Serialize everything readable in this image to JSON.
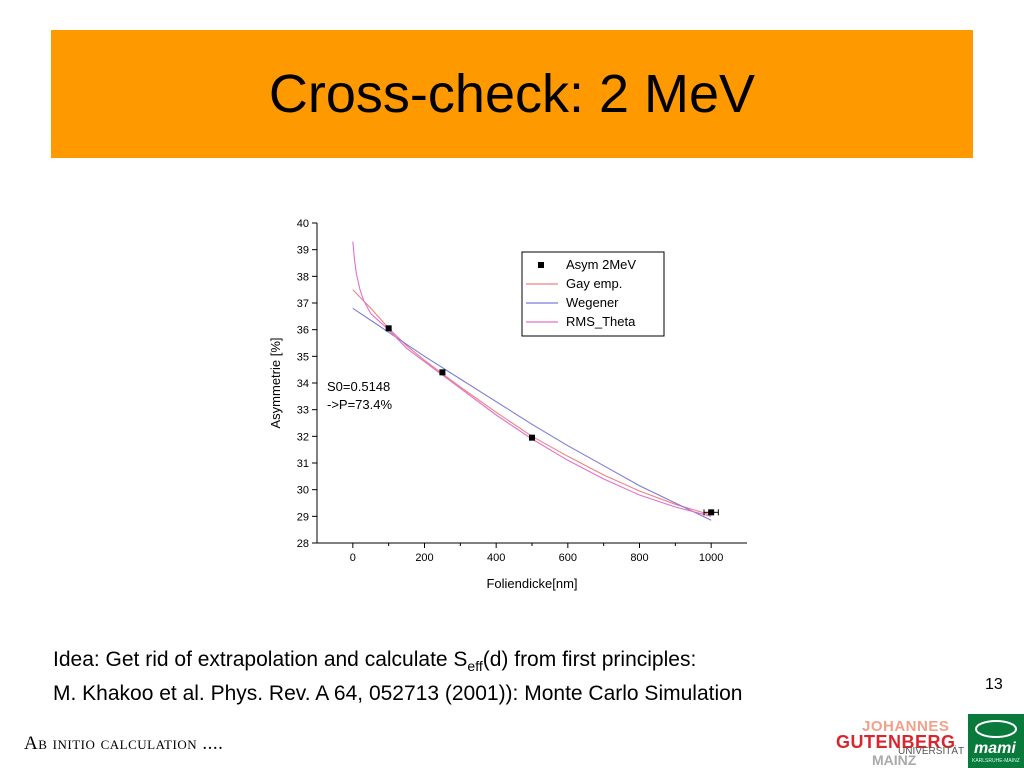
{
  "slide": {
    "title": "Cross-check: 2 MeV",
    "caption_line1_prefix": "Idea: Get rid of  extrapolation and calculate S",
    "caption_line1_sub": "eff",
    "caption_line1_suffix": "(d) from first principles:",
    "caption_line2": "M. Khakoo et al. Phys. Rev. A 64, 052713 (2001)): Monte Carlo Simulation",
    "slide_number": "13",
    "footer": "Ab initio calculation ....",
    "logo_jgu": {
      "line1": "JOHANNES",
      "line2": "GUTENBERG",
      "line3": "UNIVERSITÄT",
      "line4": "MAINZ"
    },
    "logo_mami": {
      "text": "mami",
      "sub": "KARLSRUHE-MAINZ"
    }
  },
  "chart_data": {
    "type": "scatter",
    "xlabel": "Foliendicke[nm]",
    "ylabel": "Asymmetrie [%]",
    "xlim": [
      -100,
      1100
    ],
    "ylim": [
      28,
      40
    ],
    "xticks": [
      0,
      200,
      400,
      600,
      800,
      1000
    ],
    "yticks": [
      28,
      29,
      30,
      31,
      32,
      33,
      34,
      35,
      36,
      37,
      38,
      39,
      40
    ],
    "grid": false,
    "legend_position": "top-right",
    "annotation_lines": [
      "S0=0.5148",
      "->P=73.4%"
    ],
    "series": [
      {
        "name": "Asym 2MeV",
        "kind": "points",
        "color": "#000000",
        "x": [
          100,
          250,
          500,
          1000
        ],
        "y": [
          36.05,
          34.4,
          31.95,
          29.15
        ],
        "xerr": [
          0,
          0,
          0,
          20
        ]
      },
      {
        "name": "Gay emp.",
        "kind": "line",
        "color": "#f08080",
        "x": [
          0,
          50,
          100,
          150,
          200,
          250,
          300,
          400,
          500,
          600,
          700,
          800,
          900,
          1000
        ],
        "y": [
          37.5,
          36.8,
          36.05,
          35.4,
          34.85,
          34.35,
          33.85,
          32.9,
          32.0,
          31.25,
          30.55,
          29.95,
          29.45,
          29.05
        ]
      },
      {
        "name": "Wegener",
        "kind": "line",
        "color": "#7b7bd8",
        "x": [
          0,
          100,
          200,
          300,
          400,
          500,
          600,
          700,
          800,
          900,
          1000
        ],
        "y": [
          36.8,
          35.9,
          35.0,
          34.15,
          33.3,
          32.45,
          31.65,
          30.9,
          30.15,
          29.5,
          28.85
        ]
      },
      {
        "name": "RMS_Theta",
        "kind": "line",
        "color": "#e070d0",
        "x": [
          0,
          5,
          10,
          20,
          30,
          50,
          75,
          100,
          150,
          200,
          250,
          300,
          400,
          500,
          600,
          700,
          800,
          900,
          1000
        ],
        "y": [
          39.3,
          38.6,
          38.1,
          37.5,
          37.1,
          36.6,
          36.3,
          36.0,
          35.3,
          34.8,
          34.3,
          33.8,
          32.8,
          31.9,
          31.1,
          30.4,
          29.8,
          29.35,
          29.0
        ]
      }
    ]
  }
}
